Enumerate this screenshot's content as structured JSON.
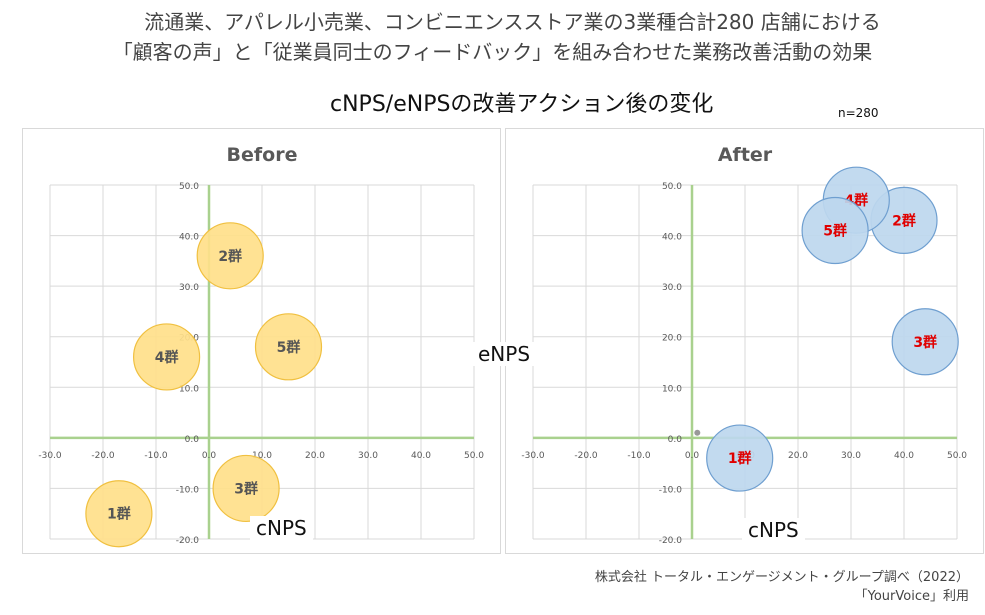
{
  "header": {
    "line1": "流通業、アパレル小売業、コンビニエンスストア業の3業種合計280 店舗における",
    "line2": "「顧客の声」と「従業員同士のフィードバック」を組み合わせた業務改善活動の効果",
    "subtitle": "cNPS/eNPSの改善アクション後の変化",
    "sample": "n=280"
  },
  "source": {
    "line1": "株式会社 トータル・エンゲージメント・グループ調べ（2022）",
    "line2": "「YourVoice」利用"
  },
  "colors": {
    "before_fill": "#ffe08a",
    "before_stroke": "#f0c040",
    "after_fill": "#bdd7ee",
    "after_stroke": "#6f9fd0",
    "axis": "#a9d18e",
    "grid": "#d9d9d9",
    "before_label": "#555555",
    "after_label": "#e00000"
  },
  "chart_data": [
    {
      "type": "scatter",
      "title": "Before",
      "xlabel": "cNPS",
      "ylabel": "eNPS",
      "xlim": [
        -30,
        50
      ],
      "ylim": [
        -20,
        50
      ],
      "x_ticks": [
        "-30.0",
        "-20.0",
        "-10.0",
        "0.0",
        "10.0",
        "20.0",
        "30.0",
        "40.0",
        "50.0"
      ],
      "y_ticks": [
        "50.0",
        "40.0",
        "30.0",
        "20.0",
        "10.0",
        "0.0",
        "-10.0",
        "-20.0"
      ],
      "grid": true,
      "points": [
        {
          "label": "1群",
          "x": -17,
          "y": -15
        },
        {
          "label": "2群",
          "x": 4,
          "y": 36
        },
        {
          "label": "3群",
          "x": 7,
          "y": -10
        },
        {
          "label": "4群",
          "x": -8,
          "y": 16
        },
        {
          "label": "5群",
          "x": 15,
          "y": 18
        }
      ]
    },
    {
      "type": "scatter",
      "title": "After",
      "xlabel": "cNPS",
      "ylabel": "eNPS",
      "xlim": [
        -30,
        50
      ],
      "ylim": [
        -20,
        50
      ],
      "x_ticks": [
        "-30.0",
        "-20.0",
        "-10.0",
        "0.0",
        "10.0",
        "20.0",
        "30.0",
        "40.0",
        "50.0"
      ],
      "y_ticks": [
        "50.0",
        "40.0",
        "30.0",
        "20.0",
        "10.0",
        "0.0",
        "-10.0",
        "-20.0"
      ],
      "grid": true,
      "points": [
        {
          "label": "1群",
          "x": 9,
          "y": -4
        },
        {
          "label": "2群",
          "x": 40,
          "y": 43
        },
        {
          "label": "3群",
          "x": 44,
          "y": 19
        },
        {
          "label": "4群",
          "x": 31,
          "y": 47
        },
        {
          "label": "5群",
          "x": 27,
          "y": 41
        }
      ],
      "markers": [
        {
          "x": 1,
          "y": 1
        }
      ]
    }
  ]
}
